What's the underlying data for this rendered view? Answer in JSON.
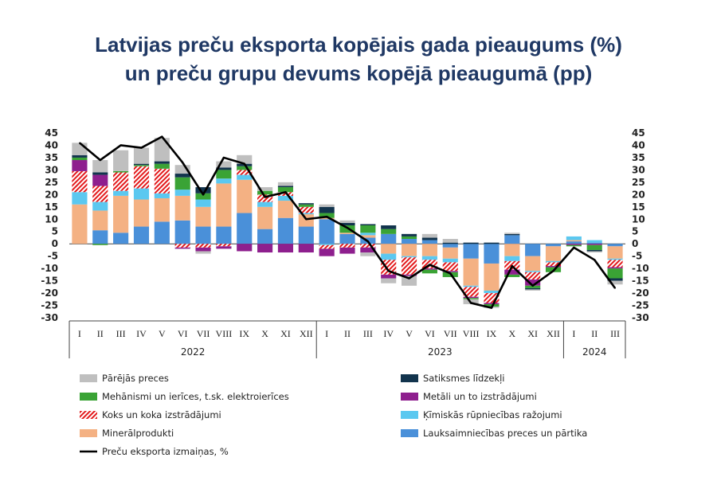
{
  "title_line1": "Latvijas preču eksporta kopējais gada pieaugums (%)",
  "title_line2": "un preču grupu devums kopējā pieaugumā (pp)",
  "chart_data": {
    "type": "bar",
    "stacked": true,
    "ylim": [
      -30,
      45
    ],
    "yticks": [
      45,
      40,
      35,
      30,
      25,
      20,
      15,
      10,
      5,
      0,
      -5,
      -10,
      -15,
      -20,
      -25,
      -30
    ],
    "categories": [
      "I",
      "II",
      "III",
      "IV",
      "V",
      "VI",
      "VII",
      "VIII",
      "IX",
      "X",
      "XI",
      "XII",
      "I",
      "II",
      "III",
      "IV",
      "V",
      "VI",
      "VII",
      "VIII",
      "IX",
      "X",
      "XI",
      "XII",
      "I",
      "II",
      "III"
    ],
    "years": [
      {
        "label": "2022",
        "start": 0,
        "end": 11
      },
      {
        "label": "2023",
        "start": 12,
        "end": 23
      },
      {
        "label": "2024",
        "start": 24,
        "end": 26
      }
    ],
    "series": [
      {
        "name": "Lauksaimniecības preces un pārtika",
        "key": "agri",
        "color": "#4a90d9",
        "pattern": "solid",
        "values": [
          0,
          5.5,
          4.5,
          7,
          9,
          9.5,
          7,
          7,
          12.5,
          6,
          10.5,
          7,
          10,
          4,
          2.5,
          4,
          2,
          1.5,
          -1.5,
          -6,
          -8,
          3.5,
          -5,
          -1,
          1,
          0.5,
          -1
        ]
      },
      {
        "name": "Minerālprodukti",
        "key": "mineral",
        "color": "#f4b183",
        "pattern": "solid",
        "values": [
          16,
          8,
          15,
          11,
          9.5,
          10,
          8,
          17.5,
          13.5,
          9,
          7,
          5,
          0.5,
          0.5,
          1,
          -4,
          -5,
          -5,
          -4.5,
          -11,
          -11,
          -5,
          -6,
          -6,
          0.5,
          0,
          -5
        ]
      },
      {
        "name": "Ķīmiskās rūpniecības ražojumi",
        "key": "chem",
        "color": "#5bc8f0",
        "pattern": "solid",
        "values": [
          5,
          3.5,
          2,
          4.5,
          2,
          2.5,
          3,
          2,
          2,
          2,
          2,
          0.5,
          -0.5,
          0,
          1,
          -2.5,
          -0.5,
          -1.5,
          -1.5,
          -0.5,
          -1,
          -2,
          -0.5,
          -0.5,
          1.5,
          1,
          -0.5
        ]
      },
      {
        "name": "Koks un koka izstrādājumi",
        "key": "wood",
        "color": "#e31a1c",
        "pattern": "hatch",
        "values": [
          8.5,
          6.5,
          7.5,
          9,
          10,
          -1.5,
          -1.5,
          -1,
          2,
          3,
          1.5,
          2.5,
          -1.5,
          -1.5,
          -1.5,
          -6,
          -7,
          -3.5,
          -3.5,
          -4,
          -4,
          -3.5,
          -3,
          -1.5,
          0,
          0,
          -3
        ]
      },
      {
        "name": "Metāli un to izstrādājumi",
        "key": "metal",
        "color": "#8e1f8e",
        "pattern": "solid",
        "values": [
          4.5,
          4.5,
          0,
          0,
          0,
          -0.5,
          -1.5,
          -1,
          -3,
          -3.5,
          -3.5,
          -3.5,
          -3,
          -2.5,
          -2,
          -1.5,
          -0.5,
          -0.5,
          -0.5,
          -0.5,
          -0.5,
          -2,
          -2.5,
          -0.5,
          -0.5,
          -0.5,
          -0.5
        ]
      },
      {
        "name": "Mehānismi un ierīces, t.sk. elektroierīces",
        "key": "mech",
        "color": "#3aa335",
        "pattern": "solid",
        "values": [
          1,
          -0.5,
          0.5,
          0.5,
          2,
          5,
          2.5,
          3.5,
          1.5,
          1.5,
          2,
          1,
          2,
          3,
          3,
          2,
          1,
          -1.5,
          -2,
          -0.5,
          -1,
          -1,
          -1,
          -2,
          -0.5,
          -2,
          -4
        ]
      },
      {
        "name": "Satiksmes līdzekļi",
        "key": "transport",
        "color": "#12344d",
        "pattern": "solid",
        "values": [
          1,
          1,
          0,
          0.5,
          1,
          1.5,
          2.5,
          1,
          1,
          0,
          0.5,
          0.5,
          2.5,
          1,
          0.5,
          1.5,
          1,
          1,
          0.5,
          0.5,
          0.5,
          0.5,
          -0.5,
          0,
          0,
          -0.5,
          -1
        ]
      },
      {
        "name": "Pārējās preces",
        "key": "other",
        "color": "#bfbfbf",
        "pattern": "solid",
        "values": [
          5,
          5,
          8.5,
          6.5,
          9.5,
          3.5,
          -1,
          2.5,
          3.5,
          1.5,
          1.5,
          0,
          1,
          1,
          -1.5,
          -2,
          -4,
          1.5,
          1.5,
          -2,
          -0.5,
          0.5,
          -0.5,
          0,
          0,
          -0.5,
          -1.5
        ]
      }
    ],
    "line": {
      "name": "Preču eksporta izmaiņas, %",
      "color": "#000000",
      "values": [
        41,
        34,
        40,
        39,
        43.5,
        33,
        20,
        35,
        32.5,
        19,
        21,
        10,
        11,
        6.5,
        1,
        -11,
        -14,
        -8.5,
        -12,
        -24,
        -26,
        -9,
        -17,
        -11,
        -1.5,
        -6.5,
        -18
      ]
    },
    "legend": {
      "placement": "bottom",
      "items": [
        {
          "label": "Pārējās preces",
          "key": "other"
        },
        {
          "label": "Satiksmes līdzekļi",
          "key": "transport"
        },
        {
          "label": "Mehānismi un ierīces, t.sk. elektroierīces",
          "key": "mech"
        },
        {
          "label": "Metāli un to izstrādājumi",
          "key": "metal"
        },
        {
          "label": "Koks un koka izstrādājumi",
          "key": "wood"
        },
        {
          "label": "Ķīmiskās rūpniecības ražojumi",
          "key": "chem"
        },
        {
          "label": "Minerālprodukti",
          "key": "mineral"
        },
        {
          "label": "Lauksaimniecības preces un pārtika",
          "key": "agri"
        },
        {
          "label": "Preču eksporta izmaiņas, %",
          "key": "line"
        }
      ]
    }
  }
}
